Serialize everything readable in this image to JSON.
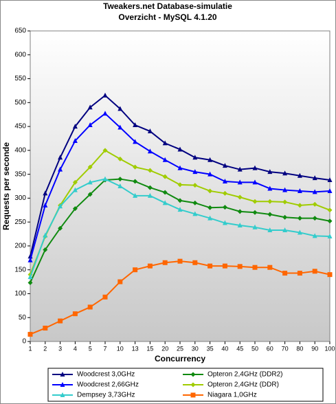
{
  "chart_data": {
    "type": "line",
    "title": "Tweakers.net Database-simulatie",
    "subtitle": "Overzicht - MySQL 4.1.20",
    "x_label": "Concurrency",
    "y_label": "Requests per seconde",
    "categories": [
      "1",
      "2",
      "3",
      "4",
      "5",
      "7",
      "10",
      "13",
      "15",
      "20",
      "25",
      "30",
      "35",
      "40",
      "45",
      "50",
      "60",
      "70",
      "80",
      "90",
      "100"
    ],
    "ylim": [
      0,
      650
    ],
    "yticks": [
      0,
      50,
      100,
      150,
      200,
      250,
      300,
      350,
      400,
      450,
      500,
      550,
      600,
      650
    ],
    "legend": "bottom",
    "series": [
      {
        "name": "Woodcrest 3,0GHz",
        "color": "#000080",
        "marker": "triangle",
        "values": [
          178,
          310,
          385,
          450,
          490,
          515,
          487,
          453,
          440,
          415,
          402,
          385,
          380,
          368,
          360,
          363,
          355,
          352,
          347,
          342,
          338
        ]
      },
      {
        "name": "Opteron 2,4GHz (DDR2)",
        "color": "#108a10",
        "marker": "diamond",
        "values": [
          123,
          192,
          237,
          278,
          308,
          338,
          340,
          335,
          322,
          312,
          295,
          290,
          280,
          281,
          272,
          270,
          266,
          260,
          258,
          258,
          252
        ]
      },
      {
        "name": "Woodcrest 2,66GHz",
        "color": "#0000ff",
        "marker": "triangle",
        "values": [
          170,
          285,
          360,
          420,
          453,
          477,
          448,
          418,
          398,
          380,
          363,
          355,
          350,
          335,
          333,
          333,
          320,
          317,
          315,
          313,
          315
        ]
      },
      {
        "name": "Opteron 2,4GHz (DDR)",
        "color": "#a0cc00",
        "marker": "diamond",
        "values": [
          140,
          220,
          285,
          333,
          365,
          400,
          382,
          365,
          358,
          345,
          328,
          327,
          315,
          310,
          302,
          293,
          293,
          292,
          285,
          287,
          275
        ]
      },
      {
        "name": "Dempsey 3,73GHz",
        "color": "#33cccc",
        "marker": "triangle",
        "values": [
          135,
          222,
          283,
          317,
          333,
          340,
          325,
          305,
          305,
          290,
          276,
          267,
          258,
          248,
          243,
          239,
          233,
          233,
          228,
          221,
          220
        ]
      },
      {
        "name": "Niagara 1,0GHz",
        "color": "#ff6600",
        "marker": "square",
        "values": [
          15,
          28,
          43,
          58,
          72,
          93,
          125,
          150,
          158,
          165,
          168,
          165,
          158,
          158,
          157,
          155,
          155,
          143,
          143,
          147,
          140
        ]
      }
    ]
  }
}
